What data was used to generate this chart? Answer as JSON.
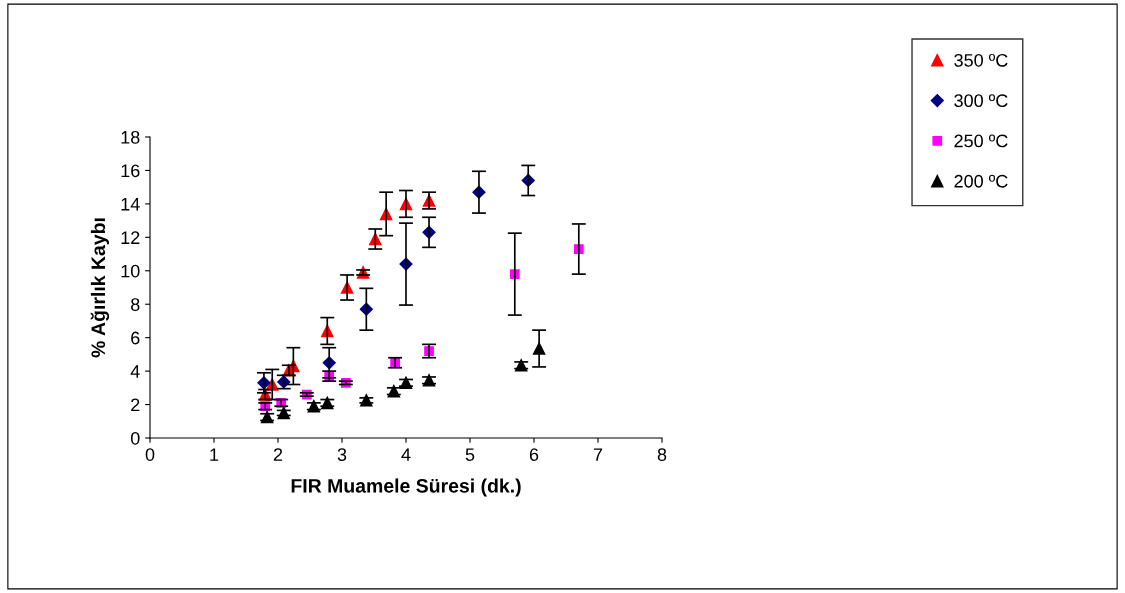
{
  "chart_data": {
    "type": "scatter",
    "xlabel": "FIR Muamele Süresi (dk.)",
    "ylabel": "% Ağırlık Kaybı",
    "xlim": [
      0,
      8
    ],
    "xticks": [
      0,
      1,
      2,
      3,
      4,
      5,
      6,
      7,
      8
    ],
    "ylim": [
      0,
      18
    ],
    "yticks": [
      0,
      2,
      4,
      6,
      8,
      10,
      12,
      14,
      16,
      18
    ],
    "grid": false,
    "legend": "top right",
    "series": [
      {
        "name": "350 ºC",
        "color": "#ff0000",
        "marker": "triangle",
        "x": [
          1.8,
          1.91,
          2.17,
          2.24,
          2.77,
          3.08,
          3.33,
          3.52,
          3.69,
          4.0,
          4.36
        ],
        "values": [
          2.6,
          3.2,
          4.05,
          4.3,
          6.4,
          9.0,
          9.9,
          11.9,
          13.4,
          14.0,
          14.2
        ],
        "errors": [
          0.3,
          0.9,
          0.3,
          1.1,
          0.8,
          0.75,
          0.15,
          0.6,
          1.3,
          0.8,
          0.5
        ]
      },
      {
        "name": "300 ºC",
        "color": "#000080",
        "marker": "diamond",
        "x": [
          1.78,
          2.09,
          2.8,
          3.38,
          4.0,
          4.36,
          5.14,
          5.91
        ],
        "values": [
          3.3,
          3.35,
          4.5,
          7.7,
          10.4,
          12.3,
          14.7,
          15.4
        ],
        "errors": [
          0.6,
          0.4,
          0.9,
          1.25,
          2.45,
          0.9,
          1.25,
          0.9
        ]
      },
      {
        "name": "250 ºC",
        "color": "#ff00ff",
        "marker": "square",
        "x": [
          1.8,
          2.05,
          2.45,
          2.8,
          3.06,
          3.83,
          4.36,
          5.7,
          6.7
        ],
        "values": [
          1.9,
          2.1,
          2.6,
          3.7,
          3.3,
          4.5,
          5.2,
          9.8,
          11.3
        ],
        "errors": [
          0.2,
          0.2,
          0.1,
          0.3,
          0.1,
          0.3,
          0.4,
          2.45,
          1.5
        ]
      },
      {
        "name": "200 ºC",
        "color": "#000000",
        "marker": "triangle",
        "x": [
          1.83,
          2.09,
          2.56,
          2.77,
          3.38,
          3.81,
          4.0,
          4.36,
          5.8,
          6.08
        ],
        "values": [
          1.25,
          1.5,
          1.9,
          2.1,
          2.25,
          2.8,
          3.3,
          3.45,
          4.35,
          5.35
        ],
        "errors": [
          0.2,
          0.15,
          0.2,
          0.2,
          0.15,
          0.2,
          0.2,
          0.2,
          0.2,
          1.1
        ]
      }
    ]
  }
}
